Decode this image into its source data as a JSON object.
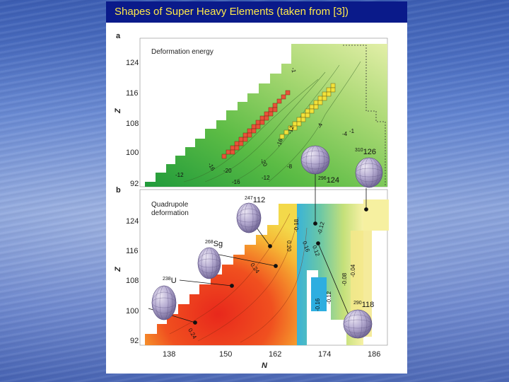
{
  "slide": {
    "title": "Shapes of Super Heavy Elements (taken from  [3])"
  },
  "figure": {
    "panel_a": {
      "letter": "a",
      "title": "Deformation energy",
      "y_axis_label": "Z",
      "y_ticks": [
        "124",
        "116",
        "108",
        "100",
        "92"
      ],
      "contour_labels": [
        "-1",
        "-4",
        "-12",
        "-16",
        "-20",
        "-16",
        "-20",
        "-12",
        "-16",
        "-12",
        "-8",
        "-4",
        "-1"
      ],
      "nuclei": [
        {
          "mass": "310",
          "symbol": "126"
        },
        {
          "mass": "296",
          "symbol": "124"
        }
      ]
    },
    "panel_b": {
      "letter": "b",
      "title_line1": "Quadrupole",
      "title_line2": "deformation",
      "y_axis_label": "Z",
      "y_ticks": [
        "124",
        "116",
        "108",
        "100",
        "92"
      ],
      "x_axis_label": "N",
      "x_ticks": [
        "138",
        "150",
        "162",
        "174",
        "186"
      ],
      "contour_labels": [
        "-0.18",
        "-0.12",
        "0.20",
        "0.16",
        "0.12",
        "0.24",
        "-0.04",
        "-0.08",
        "-0.12",
        "-0.16",
        "0.24"
      ],
      "nuclei": [
        {
          "mass": "247",
          "symbol": "112"
        },
        {
          "mass": "268",
          "symbol": "Sg"
        },
        {
          "mass": "238",
          "symbol": "U"
        },
        {
          "mass": "290",
          "symbol": "118"
        }
      ]
    }
  }
}
